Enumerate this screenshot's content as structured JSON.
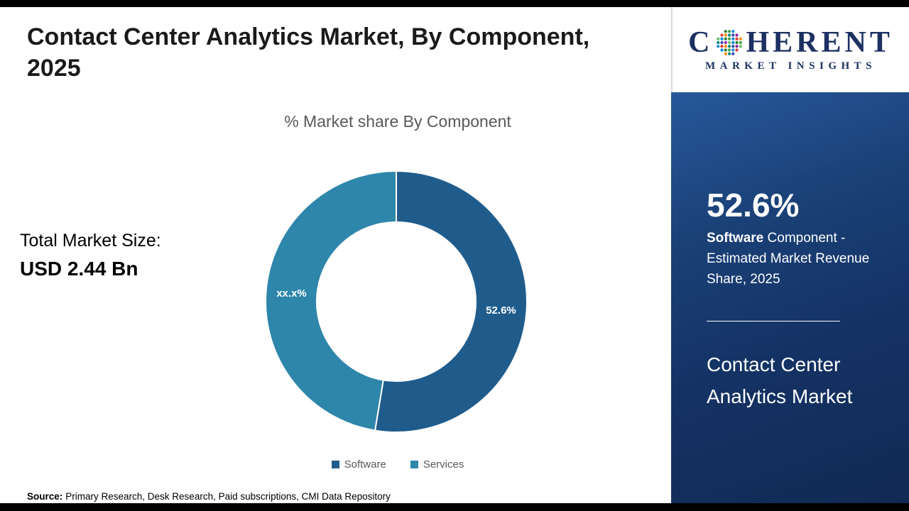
{
  "page": {
    "title": "Contact Center Analytics Market, By Component, 2025",
    "source_label": "Source:",
    "source_text": "Primary Research, Desk Research, Paid subscriptions, CMI Data Repository"
  },
  "logo": {
    "name_part1": "C",
    "name_part2": "HERENT",
    "tagline": "MARKET INSIGHTS",
    "globe_colors": [
      "#2e7d32",
      "#43a047",
      "#1e88e5",
      "#e53935",
      "#fb8c00",
      "#00897b",
      "#3949ab",
      "#8e24aa",
      "#66bb6a",
      "#0288d1"
    ]
  },
  "left_panel": {
    "total_label": "Total Market Size:",
    "total_value": "USD 2.44 Bn"
  },
  "chart_data": {
    "type": "pie",
    "donut": true,
    "title": "% Market share By Component",
    "start_angle_deg": 0,
    "legend_position": "bottom",
    "slices": [
      {
        "name": "Software",
        "value": 52.6,
        "label": "52.6%",
        "color": "#1f5c8c"
      },
      {
        "name": "Services",
        "value": 47.4,
        "label": "xx.x%",
        "color": "#2e86ab"
      }
    ]
  },
  "sidebar": {
    "stat_value": "52.6%",
    "stat_desc_bold": "Software",
    "stat_desc_rest": " Component - Estimated Market Revenue Share, 2025",
    "market_name": "Contact Center Analytics Market"
  }
}
